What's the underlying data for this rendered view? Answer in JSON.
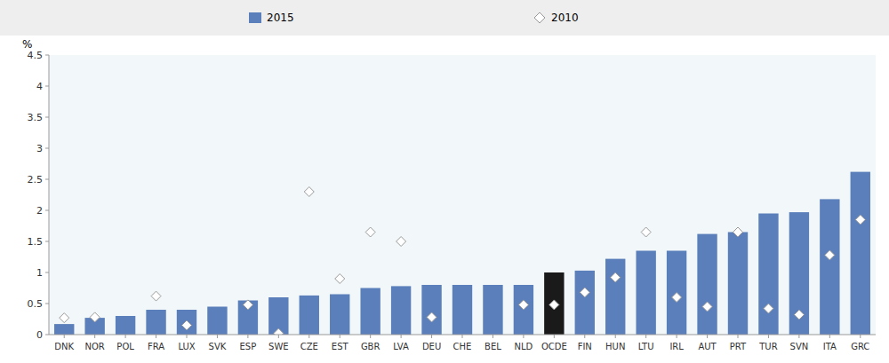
{
  "chart_data": {
    "type": "bar",
    "categories": [
      "DNK",
      "NOR",
      "POL",
      "FRA",
      "LUX",
      "SVK",
      "ESP",
      "SWE",
      "CZE",
      "EST",
      "GBR",
      "LVA",
      "DEU",
      "CHE",
      "BEL",
      "NLD",
      "OCDE",
      "FIN",
      "HUN",
      "LTU",
      "IRL",
      "AUT",
      "PRT",
      "TUR",
      "SVN",
      "ITA",
      "GRC"
    ],
    "series": [
      {
        "name": "2015",
        "type": "bar",
        "color": "#5b7fba",
        "colors": [
          "#5b7fba",
          "#5b7fba",
          "#5b7fba",
          "#5b7fba",
          "#5b7fba",
          "#5b7fba",
          "#5b7fba",
          "#5b7fba",
          "#5b7fba",
          "#5b7fba",
          "#5b7fba",
          "#5b7fba",
          "#5b7fba",
          "#5b7fba",
          "#5b7fba",
          "#5b7fba",
          "#1a1a1a",
          "#5b7fba",
          "#5b7fba",
          "#5b7fba",
          "#5b7fba",
          "#5b7fba",
          "#5b7fba",
          "#5b7fba",
          "#5b7fba",
          "#5b7fba",
          "#5b7fba"
        ],
        "values": [
          0.17,
          0.27,
          0.3,
          0.4,
          0.4,
          0.45,
          0.55,
          0.6,
          0.63,
          0.65,
          0.75,
          0.78,
          0.8,
          0.8,
          0.8,
          0.8,
          1.0,
          1.03,
          1.22,
          1.35,
          1.35,
          1.62,
          1.65,
          1.95,
          1.97,
          2.18,
          2.62
        ]
      },
      {
        "name": "2010",
        "type": "scatter",
        "marker": "diamond",
        "color": "white",
        "values": [
          0.27,
          0.28,
          null,
          0.62,
          0.15,
          null,
          0.48,
          0.02,
          2.3,
          0.9,
          1.65,
          1.5,
          0.28,
          null,
          null,
          0.48,
          0.48,
          0.68,
          0.92,
          1.65,
          0.6,
          0.45,
          1.65,
          0.42,
          0.32,
          1.28,
          1.85
        ]
      }
    ],
    "ylabel": "%",
    "ylim": [
      0,
      4.5
    ],
    "yticks": [
      0,
      0.5,
      1,
      1.5,
      2,
      2.5,
      3,
      3.5,
      4,
      4.5
    ],
    "grid": false,
    "legend": "top"
  }
}
